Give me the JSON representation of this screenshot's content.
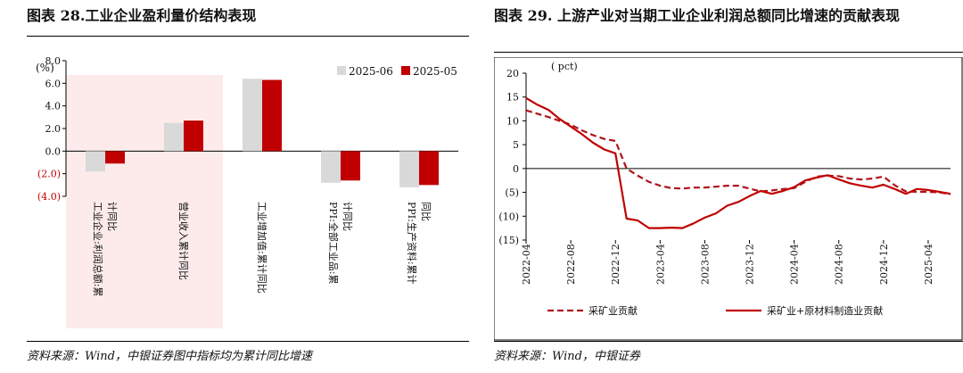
{
  "left": {
    "title": "图表 28.工业企业盈利量价结构表现",
    "source": "资料来源：Wind，中银证券图中指标均为累计同比增速",
    "chart_data": {
      "type": "bar",
      "unit_label": "(%)",
      "yticks": [
        "8.0",
        "6.0",
        "4.0",
        "2.0",
        "0.0",
        "(2.0)",
        "(4.0)"
      ],
      "ylim": [
        -4,
        8
      ],
      "categories": [
        "工业企业:利润总额:累计同比",
        "营业收入累计同比",
        "工业增加值:累计同比",
        "PPI:全部工业品:累计同比",
        "PPI:生产资料:累计同比"
      ],
      "highlight_categories": [
        0,
        1
      ],
      "series": [
        {
          "name": "2025-06",
          "values": [
            -1.8,
            2.5,
            6.4,
            -2.8,
            -3.2
          ],
          "color": "#d9d9d9"
        },
        {
          "name": "2025-05",
          "values": [
            -1.1,
            2.7,
            6.3,
            -2.6,
            -3.0
          ],
          "color": "#c00000"
        }
      ],
      "highlight_color": "#fdebeb",
      "legend_position": "top-right"
    }
  },
  "right": {
    "title": "图表 29. 上游产业对当期工业企业利润总额同比增速的贡献表现",
    "source": "资料来源：Wind，中银证券",
    "chart_data": {
      "type": "line",
      "unit_label": "( pct)",
      "yticks": [
        "20",
        "15",
        "10",
        "5",
        "0",
        "(5)",
        "(10)",
        "(15)"
      ],
      "ylim": [
        -15,
        20
      ],
      "xticks": [
        "2022-04",
        "2022-08",
        "2022-12",
        "2023-04",
        "2023-08",
        "2023-12",
        "2024-04",
        "2024-08",
        "2024-12",
        "2025-04"
      ],
      "x_start": "2022-04",
      "x_end": "2025-06",
      "series": [
        {
          "name": "采矿业贡献",
          "style": "dashed",
          "color": "#b0121b",
          "values": [
            12.2,
            11.5,
            10.8,
            10.0,
            9.2,
            8.0,
            7.0,
            6.2,
            5.8,
            0.0,
            -1.5,
            -2.8,
            -3.6,
            -4.1,
            -4.2,
            -4.0,
            -4.0,
            -3.8,
            -3.6,
            -3.6,
            -4.2,
            -4.8,
            -4.6,
            -4.3,
            -4.1,
            -2.8,
            -1.7,
            -1.5,
            -1.6,
            -2.1,
            -2.3,
            -2.1,
            -1.7,
            -3.5,
            -4.8,
            -4.9,
            -4.9,
            -5.0,
            -5.4
          ]
        },
        {
          "name": "采矿业+原材料制造业贡献",
          "style": "solid",
          "color": "#c00000",
          "values": [
            14.8,
            13.4,
            12.3,
            10.4,
            8.8,
            7.2,
            5.4,
            4.0,
            3.2,
            -10.5,
            -10.9,
            -12.5,
            -12.5,
            -12.4,
            -12.5,
            -11.5,
            -10.3,
            -9.4,
            -7.8,
            -7.0,
            -5.8,
            -4.7,
            -5.3,
            -4.7,
            -3.9,
            -2.5,
            -1.9,
            -1.4,
            -2.3,
            -3.1,
            -3.6,
            -4.0,
            -3.4,
            -4.3,
            -5.3,
            -4.3,
            -4.5,
            -4.9,
            -5.3
          ]
        }
      ],
      "legend_position": "bottom"
    }
  }
}
